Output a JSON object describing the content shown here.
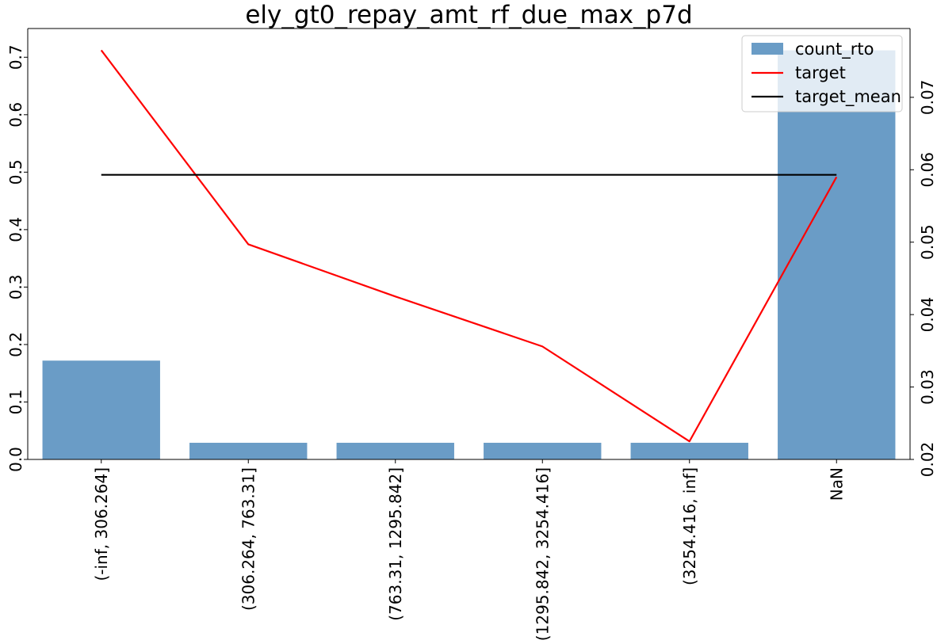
{
  "chart_data": {
    "type": "bar",
    "title": "ely_gt0_repay_amt_rf_due_max_p7d",
    "categories": [
      "(-inf, 306.264]",
      "(306.264, 763.31]",
      "(763.31, 1295.842]",
      "(1295.842, 3254.416]",
      "(3254.416, inf]",
      "NaN"
    ],
    "series": [
      {
        "name": "count_rto",
        "type": "bar",
        "axis": "left",
        "color": "#6a9cc6",
        "values": [
          0.172,
          0.029,
          0.029,
          0.029,
          0.029,
          0.712
        ]
      },
      {
        "name": "target",
        "type": "line",
        "axis": "right",
        "color": "#ff0000",
        "values": [
          0.0765,
          0.0497,
          0.0425,
          0.0356,
          0.0225,
          0.059
        ]
      },
      {
        "name": "target_mean",
        "type": "line",
        "axis": "right",
        "color": "#000000",
        "values": [
          0.0593,
          0.0593,
          0.0593,
          0.0593,
          0.0593,
          0.0593
        ]
      }
    ],
    "y_left": {
      "lim": [
        0,
        0.75
      ],
      "ticks": [
        "0.0",
        "0.1",
        "0.2",
        "0.3",
        "0.4",
        "0.5",
        "0.6",
        "0.7"
      ]
    },
    "y_right": {
      "lim": [
        0.02,
        0.0795
      ],
      "ticks": [
        "0.02",
        "0.03",
        "0.04",
        "0.05",
        "0.06",
        "0.07"
      ]
    },
    "legend": {
      "placement": "top-right"
    },
    "grid": false
  }
}
